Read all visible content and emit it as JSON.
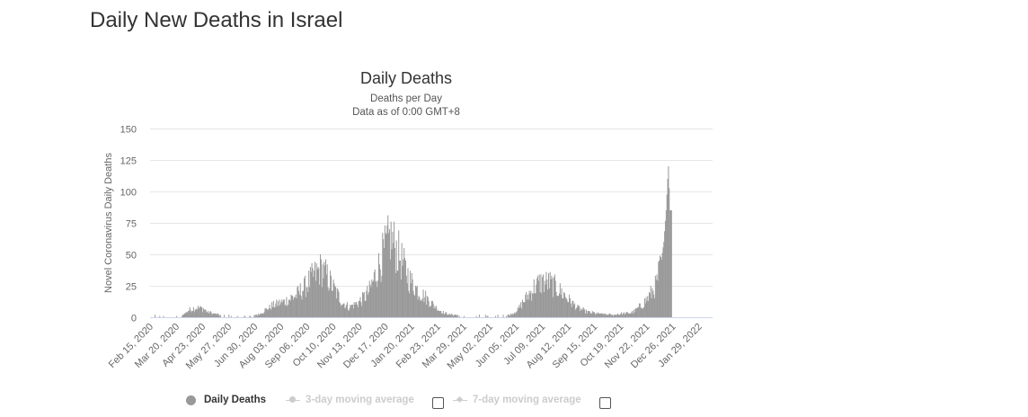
{
  "page": {
    "title": "Daily New Deaths in Israel"
  },
  "chart_data": {
    "type": "bar",
    "title": "Daily Deaths",
    "subtitle": "Deaths per Day",
    "subtitle2": "Data as of 0:00 GMT+8",
    "xlabel": "",
    "ylabel": "Novel Coronavirus Daily Deaths",
    "ylim": [
      0,
      150
    ],
    "yticks": [
      0,
      25,
      50,
      75,
      100,
      125,
      150
    ],
    "grid": true,
    "bar_color": "#999999",
    "x_start": "Feb 15, 2020",
    "x_tick_step_days": 34,
    "total_days": 732,
    "xtick_labels": [
      "Feb 15, 2020",
      "Mar 20, 2020",
      "Apr 23, 2020",
      "May 27, 2020",
      "Jun 30, 2020",
      "Aug 03, 2020",
      "Sep 06, 2020",
      "Oct 10, 2020",
      "Nov 13, 2020",
      "Dec 17, 2020",
      "Jan 20, 2021",
      "Feb 23, 2021",
      "Mar 29, 2021",
      "May 02, 2021",
      "Jun 05, 2021",
      "Jul 09, 2021",
      "Aug 12, 2021",
      "Sep 15, 2021",
      "Oct 19, 2021",
      "Nov 22, 2021",
      "Dec 26, 2021",
      "Jan 29, 2022"
    ],
    "series": [
      {
        "name": "Daily Deaths",
        "shape_keypoints_day_value": [
          [
            0,
            0
          ],
          [
            38,
            0
          ],
          [
            42,
            2
          ],
          [
            50,
            6
          ],
          [
            60,
            8
          ],
          [
            68,
            7
          ],
          [
            75,
            4
          ],
          [
            82,
            3
          ],
          [
            95,
            1
          ],
          [
            110,
            1
          ],
          [
            130,
            1
          ],
          [
            140,
            2
          ],
          [
            150,
            6
          ],
          [
            160,
            10
          ],
          [
            175,
            13
          ],
          [
            190,
            18
          ],
          [
            200,
            24
          ],
          [
            210,
            32
          ],
          [
            222,
            40
          ],
          [
            230,
            33
          ],
          [
            240,
            22
          ],
          [
            250,
            12
          ],
          [
            258,
            8
          ],
          [
            265,
            10
          ],
          [
            275,
            14
          ],
          [
            285,
            22
          ],
          [
            295,
            38
          ],
          [
            305,
            55
          ],
          [
            312,
            65
          ],
          [
            318,
            58
          ],
          [
            328,
            44
          ],
          [
            338,
            30
          ],
          [
            350,
            20
          ],
          [
            362,
            14
          ],
          [
            372,
            8
          ],
          [
            380,
            4
          ],
          [
            390,
            2
          ],
          [
            410,
            1
          ],
          [
            430,
            0
          ],
          [
            455,
            0
          ],
          [
            468,
            2
          ],
          [
            478,
            6
          ],
          [
            488,
            15
          ],
          [
            500,
            25
          ],
          [
            510,
            29
          ],
          [
            520,
            28
          ],
          [
            532,
            22
          ],
          [
            545,
            14
          ],
          [
            555,
            8
          ],
          [
            565,
            5
          ],
          [
            580,
            3
          ],
          [
            600,
            2
          ],
          [
            615,
            3
          ],
          [
            628,
            4
          ],
          [
            640,
            10
          ],
          [
            650,
            18
          ],
          [
            658,
            26
          ],
          [
            664,
            42
          ],
          [
            668,
            60
          ],
          [
            671,
            85
          ],
          [
            673,
            110
          ],
          [
            674,
            120
          ],
          [
            676,
            85
          ],
          [
            678,
            85
          ]
        ]
      }
    ]
  },
  "legend": {
    "items": [
      {
        "label": "Daily Deaths",
        "active": true
      },
      {
        "label": "3-day moving average",
        "active": false
      },
      {
        "label": "7-day moving average",
        "active": false
      }
    ]
  }
}
